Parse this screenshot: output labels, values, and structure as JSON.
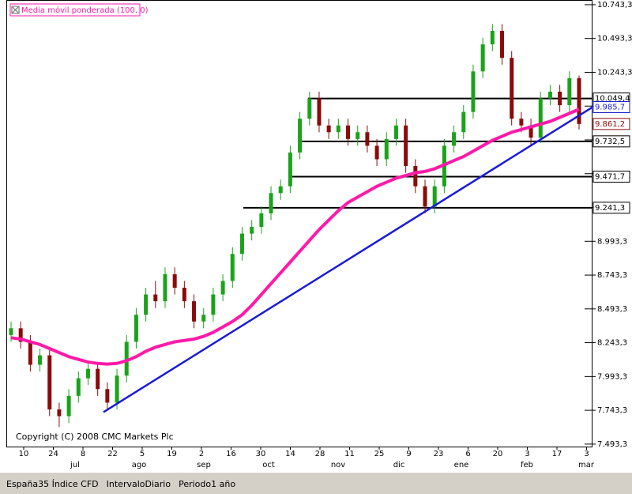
{
  "chart_data": {
    "type": "candlestick",
    "title": "Media móvil ponderada (100, 0)",
    "copyright": "Copyright (C) 2008 CMC Markets Plc",
    "instrument": "España35 Índice CFD",
    "interval": "IntervaloDiario",
    "period": "Periodo1 año",
    "ylim": [
      7475,
      10778
    ],
    "yticks": [
      {
        "value": 7493.3,
        "label": "7.493,3"
      },
      {
        "value": 7743.3,
        "label": "7.743,3"
      },
      {
        "value": 7993.3,
        "label": "7.993,3"
      },
      {
        "value": 8243.3,
        "label": "8.243,3"
      },
      {
        "value": 8493.3,
        "label": "8.493,3"
      },
      {
        "value": 8743.3,
        "label": "8.743,3"
      },
      {
        "value": 8993.3,
        "label": "8.993,3"
      },
      {
        "value": 9243.3,
        "label": "9.243,3"
      },
      {
        "value": 9493.3,
        "label": "9.493,3"
      },
      {
        "value": 9743.3,
        "label": "9.743,3"
      },
      {
        "value": 9993.3,
        "label": "9.993,3"
      },
      {
        "value": 10243.3,
        "label": "10.243,3"
      },
      {
        "value": 10493.3,
        "label": "10.493,3"
      },
      {
        "value": 10743.3,
        "label": "10.743,3"
      }
    ],
    "x_tick_labels": [
      "10",
      "24",
      "8",
      "22",
      "5",
      "19",
      "2",
      "16",
      "30",
      "14",
      "28",
      "11",
      "25",
      "9",
      "23",
      "6",
      "20",
      "3",
      "17",
      "3"
    ],
    "month_labels": [
      "jul",
      "ago",
      "sep",
      "oct",
      "nov",
      "dic",
      "ene",
      "feb",
      "mar"
    ],
    "open": [
      8300,
      8350,
      8250,
      8080,
      8150,
      7750,
      7700,
      7850,
      7980,
      8050,
      7900,
      7800,
      8000,
      8250,
      8450,
      8600,
      8550,
      8750,
      8650,
      8550,
      8400,
      8450,
      8600,
      8700,
      8900,
      9050,
      9100,
      9200,
      9350,
      9400,
      9650,
      9900,
      10050,
      9850,
      9800,
      9850,
      9750,
      9800,
      9700,
      9600,
      9750,
      9850,
      9550,
      9400,
      9250,
      9400,
      9700,
      9800,
      9950,
      10250,
      10450,
      10550,
      10350,
      9900,
      9850,
      9760,
      10050,
      10100,
      10000,
      10200
    ],
    "high": [
      8400,
      8400,
      8300,
      8200,
      8200,
      7800,
      7900,
      8030,
      8100,
      8100,
      7950,
      8050,
      8300,
      8500,
      8650,
      8700,
      8800,
      8800,
      8700,
      8600,
      8500,
      8650,
      8750,
      8950,
      9100,
      9150,
      9250,
      9400,
      9450,
      9700,
      9950,
      10100,
      10100,
      9900,
      9900,
      9900,
      9850,
      9850,
      9750,
      9800,
      9900,
      9900,
      9600,
      9450,
      9450,
      9750,
      9850,
      10000,
      10300,
      10500,
      10600,
      10600,
      10400,
      9950,
      9900,
      10100,
      10150,
      10150,
      10250,
      10220
    ],
    "low": [
      8250,
      8200,
      8030,
      8030,
      7700,
      7620,
      7650,
      7800,
      7930,
      7850,
      7740,
      7750,
      7950,
      8200,
      8400,
      8500,
      8500,
      8600,
      8500,
      8350,
      8350,
      8400,
      8550,
      8650,
      8850,
      9000,
      9050,
      9150,
      9300,
      9350,
      9600,
      9850,
      9800,
      9750,
      9750,
      9700,
      9700,
      9650,
      9550,
      9550,
      9700,
      9500,
      9350,
      9200,
      9200,
      9350,
      9650,
      9750,
      9900,
      10200,
      10400,
      10300,
      9850,
      9800,
      9700,
      9720,
      10000,
      9950,
      9950,
      9820
    ],
    "close": [
      8350,
      8250,
      8080,
      8150,
      7750,
      7700,
      7850,
      7980,
      8050,
      7900,
      7800,
      8000,
      8250,
      8450,
      8600,
      8550,
      8750,
      8650,
      8550,
      8400,
      8450,
      8600,
      8700,
      8900,
      9050,
      9100,
      9200,
      9350,
      9400,
      9650,
      9900,
      10050,
      9850,
      9800,
      9850,
      9750,
      9800,
      9700,
      9600,
      9750,
      9850,
      9550,
      9400,
      9250,
      9400,
      9700,
      9800,
      9950,
      10250,
      10450,
      10550,
      10350,
      9900,
      9850,
      9760,
      10050,
      10100,
      10000,
      10200,
      9861.2
    ],
    "last_label": "9.861,2",
    "moving_average": {
      "color": "#ff1aa8",
      "values": [
        8280,
        8270,
        8250,
        8230,
        8200,
        8170,
        8140,
        8120,
        8100,
        8090,
        8085,
        8090,
        8110,
        8140,
        8180,
        8210,
        8230,
        8250,
        8260,
        8270,
        8290,
        8320,
        8360,
        8400,
        8450,
        8520,
        8600,
        8680,
        8760,
        8840,
        8920,
        9000,
        9080,
        9150,
        9220,
        9280,
        9320,
        9360,
        9400,
        9430,
        9460,
        9480,
        9500,
        9510,
        9530,
        9560,
        9590,
        9620,
        9660,
        9700,
        9740,
        9770,
        9800,
        9820,
        9840,
        9860,
        9880,
        9910,
        9940,
        9970
      ]
    },
    "trendline": {
      "color": "#1a1ad8",
      "values": [
        7730,
        9985.7
      ],
      "label": "9.985,7"
    },
    "levels": [
      {
        "value": 10049.4,
        "label": "10.049,4"
      },
      {
        "value": 9732.5,
        "label": "9.732,5"
      },
      {
        "value": 9471.7,
        "label": "9.471,7"
      },
      {
        "value": 9241.3,
        "label": "9.241,3"
      }
    ],
    "up_color": "#1aa31a",
    "down_color": "#8b0a0a"
  }
}
